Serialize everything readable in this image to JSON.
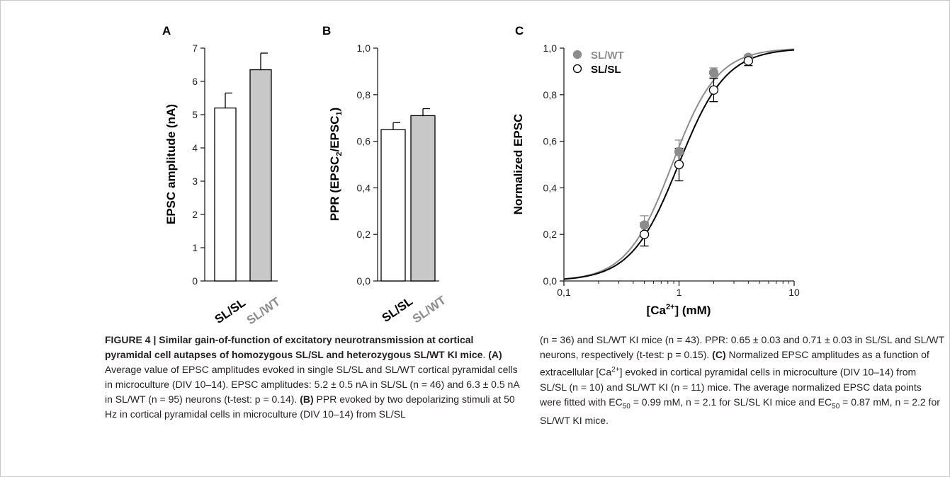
{
  "colors": {
    "gray": "#8c8c8c",
    "bar_gray": "#c8c8c8",
    "black": "#000000",
    "axis": "#231f20"
  },
  "panels": {
    "A": {
      "letter": "A",
      "ylabel": "EPSC amplitude (nA)",
      "y_ticks": [
        "0",
        "1",
        "2",
        "3",
        "4",
        "5",
        "6",
        "7"
      ],
      "categories": [
        "SL/SL",
        "SL/WT"
      ]
    },
    "B": {
      "letter": "B",
      "ylabel_prefix": "PPR (EPSC",
      "ylabel_sub1": "2",
      "ylabel_mid": "/EPSC",
      "ylabel_sub2": "1",
      "ylabel_suffix": ")",
      "y_ticks": [
        "0,0",
        "0,2",
        "0,4",
        "0,6",
        "0,8",
        "1,0"
      ],
      "categories": [
        "SL/SL",
        "SL/WT"
      ]
    },
    "C": {
      "letter": "C",
      "ylabel": "Normalized EPSC",
      "y_ticks": [
        "0,0",
        "0,2",
        "0,4",
        "0,6",
        "0,8",
        "1,0"
      ],
      "x_ticks": [
        "0,1",
        "1",
        "10"
      ],
      "xlabel_pre": "[Ca",
      "xlabel_sup": "2+",
      "xlabel_post": "] (mM)",
      "legend": [
        "SL/WT",
        "SL/SL"
      ]
    }
  },
  "chart_data": [
    {
      "panel": "A",
      "type": "bar",
      "categories": [
        "SL/SL",
        "SL/WT"
      ],
      "values": [
        5.2,
        6.35
      ],
      "errors": [
        0.45,
        0.5
      ],
      "colors": [
        "#ffffff",
        "#c8c8c8"
      ],
      "ylabel": "EPSC amplitude (nA)",
      "ylim": [
        0,
        7
      ]
    },
    {
      "panel": "B",
      "type": "bar",
      "categories": [
        "SL/SL",
        "SL/WT"
      ],
      "values": [
        0.65,
        0.71
      ],
      "errors": [
        0.03,
        0.03
      ],
      "colors": [
        "#ffffff",
        "#c8c8c8"
      ],
      "ylabel": "PPR (EPSC2/EPSC1)",
      "ylim": [
        0,
        1
      ]
    },
    {
      "panel": "C",
      "type": "scatter",
      "xscale": "log",
      "xlim": [
        0.1,
        10
      ],
      "ylim": [
        0,
        1
      ],
      "xlabel": "[Ca2+] (mM)",
      "ylabel": "Normalized EPSC",
      "legend_position": "top-left",
      "series": [
        {
          "name": "SL/WT",
          "marker": "filled-gray",
          "x": [
            0.5,
            1,
            2,
            4
          ],
          "y": [
            0.24,
            0.555,
            0.895,
            0.96
          ],
          "errors": [
            0.04,
            0.05,
            0.02,
            0.01
          ],
          "fit": {
            "ec50": 0.87,
            "n": 2.2
          }
        },
        {
          "name": "SL/SL",
          "marker": "open-black",
          "x": [
            0.5,
            1,
            2,
            4
          ],
          "y": [
            0.2,
            0.5,
            0.82,
            0.945
          ],
          "errors": [
            0.05,
            0.07,
            0.05,
            0.02
          ],
          "fit": {
            "ec50": 0.99,
            "n": 2.1
          }
        }
      ]
    }
  ],
  "caption": {
    "title": "FIGURE 4 | Similar gain-of-function of excitatory neurotransmission at cortical pyramidal cell autapses of homozygous SL/SL and heterozygous SL/WT KI mice",
    "a_label": "(A)",
    "a_text": " Average value of EPSC amplitudes evoked in single SL/SL and SL/WT cortical pyramidal cells in microculture (DIV 10–14). EPSC amplitudes: 5.2 ± 0.5 nA in SL/SL (n = 46) and 6.3 ± 0.5 nA in SL/WT (n = 95) neurons (t-test: p = 0.14). ",
    "b_label": "(B)",
    "b_text1": " PPR evoked by two depolarizing stimuli at 50 Hz in cortical pyramidal cells in microculture (DIV 10–14) from SL/SL",
    "b_text2": "(n = 36) and SL/WT KI mice (n = 43). PPR: 0.65 ± 0.03 and 0.71 ± 0.03 in SL/SL and SL/WT neurons, respectively (t-test: p = 0.15). ",
    "c_label": "(C)",
    "c_text1": " Normalized EPSC amplitudes as a function of extracellular [Ca",
    "c_sup": "2+",
    "c_text2": "] evoked in cortical pyramidal cells in microculture (DIV 10–14) from SL/SL (n = 10) and SL/WT KI (n = 11) mice. The average normalized EPSC data points were fitted with EC",
    "c_sub1": "50",
    "c_text3": " = 0.99 mM, n = 2.1 for SL/SL KI mice and EC",
    "c_sub2": "50",
    "c_text4": " = 0.87 mM, n = 2.2 for SL/WT KI mice."
  }
}
